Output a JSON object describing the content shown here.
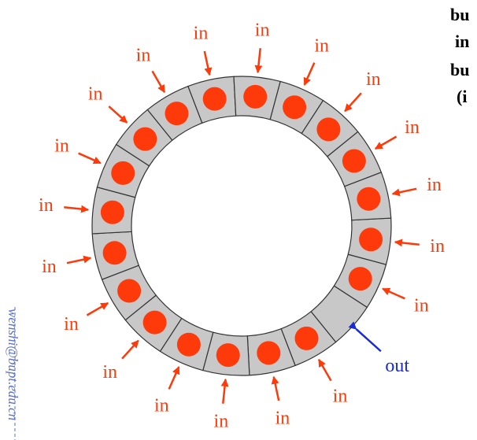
{
  "diagram": {
    "in_label": "in",
    "out_label": "out",
    "side_text": [
      "bu",
      "in",
      "bu",
      "(i"
    ],
    "watermark_email": "wenshi@bupt.edu.cn",
    "ring": {
      "slot_count": 20,
      "empty_slot_index": 2,
      "in_slots": [
        0,
        1,
        3,
        4,
        5,
        6,
        7,
        8,
        9,
        10,
        11,
        12,
        13,
        14,
        15,
        16,
        17,
        18,
        19
      ],
      "out_slot": 2
    },
    "colors": {
      "ring_fill": "#c8c8c8",
      "ring_stroke": "#333333",
      "packet": "#ff3a0a",
      "in_arrow": "#ff3a0a",
      "out_arrow": "#1a2bd6",
      "watermark": "#5a70c8"
    }
  }
}
